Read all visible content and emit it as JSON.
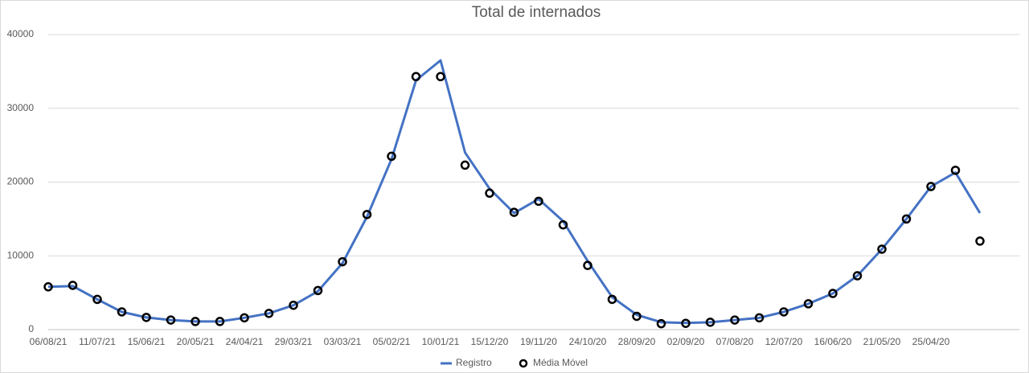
{
  "chart_data": {
    "type": "line",
    "title": "Total de internados",
    "categories": [
      "06/08/21",
      null,
      "11/07/21",
      null,
      "15/06/21",
      null,
      "20/05/21",
      null,
      "24/04/21",
      null,
      "29/03/21",
      null,
      "03/03/21",
      null,
      "05/02/21",
      null,
      "10/01/21",
      null,
      "15/12/20",
      null,
      "19/11/20",
      null,
      "24/10/20",
      null,
      "28/09/20",
      null,
      "02/09/20",
      null,
      "07/08/20",
      null,
      "12/07/20",
      null,
      "16/06/20",
      null,
      "21/05/20",
      null,
      "25/04/20",
      null,
      null,
      null
    ],
    "series": [
      {
        "name": "Registro",
        "color": "#4472c4",
        "marker": "line",
        "values": [
          5800,
          5900,
          4100,
          2400,
          1650,
          1300,
          1100,
          1100,
          1600,
          2200,
          3300,
          5200,
          9000,
          15300,
          23100,
          33800,
          36500,
          24000,
          19100,
          15800,
          17700,
          14700,
          9300,
          4400,
          2000,
          1000,
          900,
          1000,
          1300,
          1600,
          2400,
          3500,
          4900,
          7300,
          10900,
          15000,
          19400,
          21300,
          15800,
          null
        ]
      },
      {
        "name": "Média Móvel",
        "color": "#000000",
        "marker": "circle",
        "values": [
          5800,
          6000,
          4100,
          2400,
          1650,
          1300,
          1100,
          1100,
          1600,
          2200,
          3300,
          5300,
          9200,
          15600,
          23500,
          34300,
          34300,
          22300,
          18500,
          15900,
          17400,
          14200,
          8700,
          4100,
          1800,
          800,
          850,
          1000,
          1300,
          1600,
          2400,
          3500,
          4900,
          7300,
          10900,
          15000,
          19400,
          21600,
          12000,
          null
        ]
      }
    ],
    "ylim": [
      0,
      40000
    ],
    "yticks": [
      0,
      10000,
      20000,
      30000,
      40000
    ],
    "grid": true,
    "legend": "bottom"
  }
}
